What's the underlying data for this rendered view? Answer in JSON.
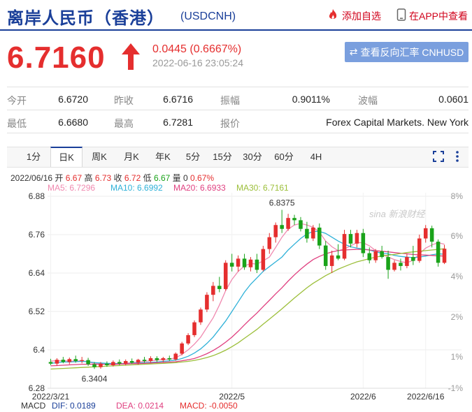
{
  "header": {
    "title": "离岸人民币（香港）",
    "symbol": "(USDCNH)",
    "add_watch": "添加自选",
    "view_app": "在APP中查看"
  },
  "quote": {
    "price": "6.7160",
    "change": "0.0445 (0.6667%)",
    "time": "2022-06-16 23:05:24",
    "reverse_btn": "查看反向汇率 CNHUSD"
  },
  "stats": {
    "open_label": "今开",
    "open": "6.6720",
    "prev_label": "昨收",
    "prev": "6.6716",
    "amp_label": "振幅",
    "amp": "0.9011%",
    "wave_label": "波幅",
    "wave": "0.0601",
    "low_label": "最低",
    "low": "6.6680",
    "high_label": "最高",
    "high": "6.7281",
    "quote_label": "报价",
    "quote_src": "Forex Capital Markets. New York"
  },
  "tabs": [
    "1分",
    "日K",
    "周K",
    "月K",
    "年K",
    "5分",
    "15分",
    "30分",
    "60分",
    "4H"
  ],
  "active_tab": 1,
  "ohlc": {
    "date": "2022/06/16",
    "open_label": "开",
    "open": "6.67",
    "high_label": "高",
    "high": "6.73",
    "close_label": "收",
    "close": "6.72",
    "low_label": "低",
    "low": "6.67",
    "vol_label": "量",
    "vol": "0",
    "pct": "0.67%"
  },
  "ma_legend": {
    "ma5": "MA5: 6.7296",
    "ma10": "MA10: 6.6992",
    "ma20": "MA20: 6.6933",
    "ma30": "MA30: 6.7161"
  },
  "macd_legend": {
    "name": "MACD",
    "dif": "DIF: 0.0189",
    "dea": "DEA: 0.0214",
    "macd": "MACD: -0.0050"
  },
  "colors": {
    "up": "#e52e2e",
    "down": "#1aa31a",
    "ma5": "#f08ab0",
    "ma10": "#2fb1d8",
    "ma20": "#e04080",
    "ma30": "#9cbf3a",
    "brand": "#1a3f99"
  },
  "watermark": "sina 新浪财经",
  "chart_data": {
    "type": "candlestick",
    "y_ticks": [
      6.28,
      6.4,
      6.52,
      6.64,
      6.76,
      6.88
    ],
    "y_tick_labels": [
      "6.28",
      "6.4",
      "6.52",
      "6.64",
      "6.76",
      "6.88"
    ],
    "y_pct_ticks": [
      "-1%",
      "1%",
      "2%",
      "4%",
      "6%",
      "8%"
    ],
    "ylim": [
      6.28,
      6.9
    ],
    "x_tick_labels": [
      {
        "label": "2022/3/21",
        "index": 0
      },
      {
        "label": "2022/5",
        "index": 29
      },
      {
        "label": "2022/6",
        "index": 50
      },
      {
        "label": "2022/6/16",
        "index": 60
      }
    ],
    "annotations": [
      {
        "text": "6.8375",
        "index": 37,
        "value": 6.8375
      },
      {
        "text": "6.3404",
        "index": 7,
        "value": 6.3404
      }
    ],
    "candles": [
      {
        "o": 6.362,
        "h": 6.372,
        "l": 6.352,
        "c": 6.357
      },
      {
        "o": 6.357,
        "h": 6.374,
        "l": 6.35,
        "c": 6.369
      },
      {
        "o": 6.369,
        "h": 6.378,
        "l": 6.358,
        "c": 6.362
      },
      {
        "o": 6.362,
        "h": 6.376,
        "l": 6.355,
        "c": 6.371
      },
      {
        "o": 6.371,
        "h": 6.382,
        "l": 6.36,
        "c": 6.365
      },
      {
        "o": 6.365,
        "h": 6.378,
        "l": 6.358,
        "c": 6.368
      },
      {
        "o": 6.368,
        "h": 6.375,
        "l": 6.35,
        "c": 6.355
      },
      {
        "o": 6.355,
        "h": 6.362,
        "l": 6.3404,
        "c": 6.346
      },
      {
        "o": 6.346,
        "h": 6.362,
        "l": 6.341,
        "c": 6.357
      },
      {
        "o": 6.357,
        "h": 6.364,
        "l": 6.347,
        "c": 6.352
      },
      {
        "o": 6.352,
        "h": 6.367,
        "l": 6.348,
        "c": 6.362
      },
      {
        "o": 6.362,
        "h": 6.37,
        "l": 6.352,
        "c": 6.357
      },
      {
        "o": 6.357,
        "h": 6.37,
        "l": 6.352,
        "c": 6.365
      },
      {
        "o": 6.365,
        "h": 6.373,
        "l": 6.356,
        "c": 6.36
      },
      {
        "o": 6.36,
        "h": 6.372,
        "l": 6.354,
        "c": 6.369
      },
      {
        "o": 6.369,
        "h": 6.378,
        "l": 6.36,
        "c": 6.365
      },
      {
        "o": 6.365,
        "h": 6.38,
        "l": 6.36,
        "c": 6.374
      },
      {
        "o": 6.374,
        "h": 6.38,
        "l": 6.362,
        "c": 6.368
      },
      {
        "o": 6.368,
        "h": 6.378,
        "l": 6.362,
        "c": 6.374
      },
      {
        "o": 6.374,
        "h": 6.382,
        "l": 6.365,
        "c": 6.37
      },
      {
        "o": 6.37,
        "h": 6.392,
        "l": 6.366,
        "c": 6.388
      },
      {
        "o": 6.388,
        "h": 6.425,
        "l": 6.383,
        "c": 6.42
      },
      {
        "o": 6.42,
        "h": 6.452,
        "l": 6.415,
        "c": 6.446
      },
      {
        "o": 6.446,
        "h": 6.492,
        "l": 6.44,
        "c": 6.486
      },
      {
        "o": 6.486,
        "h": 6.532,
        "l": 6.478,
        "c": 6.526
      },
      {
        "o": 6.526,
        "h": 6.58,
        "l": 6.518,
        "c": 6.572
      },
      {
        "o": 6.572,
        "h": 6.612,
        "l": 6.552,
        "c": 6.6
      },
      {
        "o": 6.6,
        "h": 6.628,
        "l": 6.58,
        "c": 6.59
      },
      {
        "o": 6.59,
        "h": 6.68,
        "l": 6.585,
        "c": 6.672
      },
      {
        "o": 6.672,
        "h": 6.7,
        "l": 6.645,
        "c": 6.66
      },
      {
        "o": 6.66,
        "h": 6.695,
        "l": 6.645,
        "c": 6.685
      },
      {
        "o": 6.685,
        "h": 6.7,
        "l": 6.65,
        "c": 6.658
      },
      {
        "o": 6.658,
        "h": 6.69,
        "l": 6.645,
        "c": 6.682
      },
      {
        "o": 6.682,
        "h": 6.7,
        "l": 6.64,
        "c": 6.65
      },
      {
        "o": 6.65,
        "h": 6.725,
        "l": 6.645,
        "c": 6.715
      },
      {
        "o": 6.715,
        "h": 6.765,
        "l": 6.7,
        "c": 6.752
      },
      {
        "o": 6.752,
        "h": 6.798,
        "l": 6.735,
        "c": 6.79
      },
      {
        "o": 6.79,
        "h": 6.8375,
        "l": 6.765,
        "c": 6.778
      },
      {
        "o": 6.778,
        "h": 6.825,
        "l": 6.772,
        "c": 6.812
      },
      {
        "o": 6.812,
        "h": 6.822,
        "l": 6.79,
        "c": 6.805
      },
      {
        "o": 6.805,
        "h": 6.815,
        "l": 6.77,
        "c": 6.778
      },
      {
        "o": 6.778,
        "h": 6.8,
        "l": 6.735,
        "c": 6.748
      },
      {
        "o": 6.748,
        "h": 6.79,
        "l": 6.74,
        "c": 6.782
      },
      {
        "o": 6.782,
        "h": 6.795,
        "l": 6.715,
        "c": 6.726
      },
      {
        "o": 6.726,
        "h": 6.74,
        "l": 6.65,
        "c": 6.662
      },
      {
        "o": 6.662,
        "h": 6.71,
        "l": 6.64,
        "c": 6.695
      },
      {
        "o": 6.695,
        "h": 6.73,
        "l": 6.68,
        "c": 6.685
      },
      {
        "o": 6.685,
        "h": 6.775,
        "l": 6.68,
        "c": 6.762
      },
      {
        "o": 6.762,
        "h": 6.775,
        "l": 6.72,
        "c": 6.732
      },
      {
        "o": 6.732,
        "h": 6.775,
        "l": 6.72,
        "c": 6.765
      },
      {
        "o": 6.765,
        "h": 6.778,
        "l": 6.69,
        "c": 6.702
      },
      {
        "o": 6.702,
        "h": 6.72,
        "l": 6.67,
        "c": 6.68
      },
      {
        "o": 6.68,
        "h": 6.715,
        "l": 6.672,
        "c": 6.708
      },
      {
        "o": 6.708,
        "h": 6.725,
        "l": 6.685,
        "c": 6.69
      },
      {
        "o": 6.69,
        "h": 6.71,
        "l": 6.622,
        "c": 6.65
      },
      {
        "o": 6.65,
        "h": 6.68,
        "l": 6.645,
        "c": 6.672
      },
      {
        "o": 6.672,
        "h": 6.685,
        "l": 6.648,
        "c": 6.662
      },
      {
        "o": 6.662,
        "h": 6.7,
        "l": 6.655,
        "c": 6.69
      },
      {
        "o": 6.69,
        "h": 6.725,
        "l": 6.665,
        "c": 6.678
      },
      {
        "o": 6.678,
        "h": 6.76,
        "l": 6.672,
        "c": 6.748
      },
      {
        "o": 6.748,
        "h": 6.79,
        "l": 6.735,
        "c": 6.78
      },
      {
        "o": 6.78,
        "h": 6.788,
        "l": 6.72,
        "c": 6.738
      },
      {
        "o": 6.738,
        "h": 6.745,
        "l": 6.66,
        "c": 6.672
      },
      {
        "o": 6.672,
        "h": 6.7281,
        "l": 6.668,
        "c": 6.716
      }
    ],
    "ma_lines": [
      {
        "name": "MA5",
        "color": "#f08ab0",
        "values": [
          6.365,
          6.366,
          6.366,
          6.365,
          6.365,
          6.366,
          6.363,
          6.357,
          6.356,
          6.355,
          6.354,
          6.355,
          6.358,
          6.36,
          6.362,
          6.364,
          6.366,
          6.368,
          6.37,
          6.371,
          6.375,
          6.386,
          6.4,
          6.418,
          6.44,
          6.47,
          6.5,
          6.54,
          6.585,
          6.62,
          6.645,
          6.662,
          6.67,
          6.668,
          6.678,
          6.69,
          6.72,
          6.752,
          6.777,
          6.79,
          6.795,
          6.79,
          6.783,
          6.768,
          6.74,
          6.722,
          6.71,
          6.715,
          6.725,
          6.735,
          6.735,
          6.725,
          6.71,
          6.7,
          6.69,
          6.682,
          6.676,
          6.672,
          6.68,
          6.7,
          6.718,
          6.728,
          6.735,
          6.73
        ]
      },
      {
        "name": "MA10",
        "color": "#2fb1d8",
        "values": [
          6.358,
          6.36,
          6.362,
          6.362,
          6.363,
          6.364,
          6.363,
          6.36,
          6.359,
          6.358,
          6.357,
          6.357,
          6.357,
          6.358,
          6.359,
          6.36,
          6.361,
          6.362,
          6.364,
          6.366,
          6.368,
          6.373,
          6.38,
          6.39,
          6.403,
          6.42,
          6.44,
          6.465,
          6.49,
          6.52,
          6.55,
          6.58,
          6.605,
          6.625,
          6.645,
          6.66,
          6.675,
          6.69,
          6.712,
          6.73,
          6.748,
          6.762,
          6.77,
          6.77,
          6.764,
          6.752,
          6.74,
          6.73,
          6.722,
          6.718,
          6.715,
          6.712,
          6.706,
          6.702,
          6.7,
          6.695,
          6.692,
          6.69,
          6.688,
          6.69,
          6.693,
          6.697,
          6.7,
          6.699
        ]
      },
      {
        "name": "MA20",
        "color": "#e04080",
        "values": [
          6.35,
          6.351,
          6.352,
          6.353,
          6.354,
          6.355,
          6.355,
          6.355,
          6.355,
          6.355,
          6.355,
          6.356,
          6.356,
          6.357,
          6.357,
          6.358,
          6.359,
          6.36,
          6.361,
          6.362,
          6.363,
          6.366,
          6.369,
          6.373,
          6.38,
          6.388,
          6.398,
          6.41,
          6.424,
          6.44,
          6.458,
          6.478,
          6.497,
          6.515,
          6.535,
          6.555,
          6.575,
          6.594,
          6.615,
          6.634,
          6.652,
          6.668,
          6.682,
          6.692,
          6.7,
          6.706,
          6.71,
          6.712,
          6.713,
          6.714,
          6.714,
          6.712,
          6.71,
          6.708,
          6.706,
          6.704,
          6.702,
          6.7,
          6.698,
          6.697,
          6.696,
          6.695,
          6.694,
          6.693
        ]
      },
      {
        "name": "MA30",
        "color": "#9cbf3a",
        "values": [
          6.34,
          6.341,
          6.342,
          6.343,
          6.344,
          6.345,
          6.346,
          6.347,
          6.348,
          6.349,
          6.35,
          6.351,
          6.352,
          6.353,
          6.354,
          6.355,
          6.356,
          6.357,
          6.358,
          6.359,
          6.36,
          6.362,
          6.364,
          6.367,
          6.371,
          6.376,
          6.382,
          6.39,
          6.399,
          6.41,
          6.422,
          6.436,
          6.45,
          6.464,
          6.48,
          6.496,
          6.512,
          6.528,
          6.545,
          6.562,
          6.578,
          6.594,
          6.608,
          6.62,
          6.632,
          6.642,
          6.652,
          6.66,
          6.668,
          6.675,
          6.68,
          6.685,
          6.69,
          6.693,
          6.696,
          6.698,
          6.701,
          6.704,
          6.706,
          6.708,
          6.71,
          6.712,
          6.714,
          6.716
        ]
      }
    ]
  }
}
